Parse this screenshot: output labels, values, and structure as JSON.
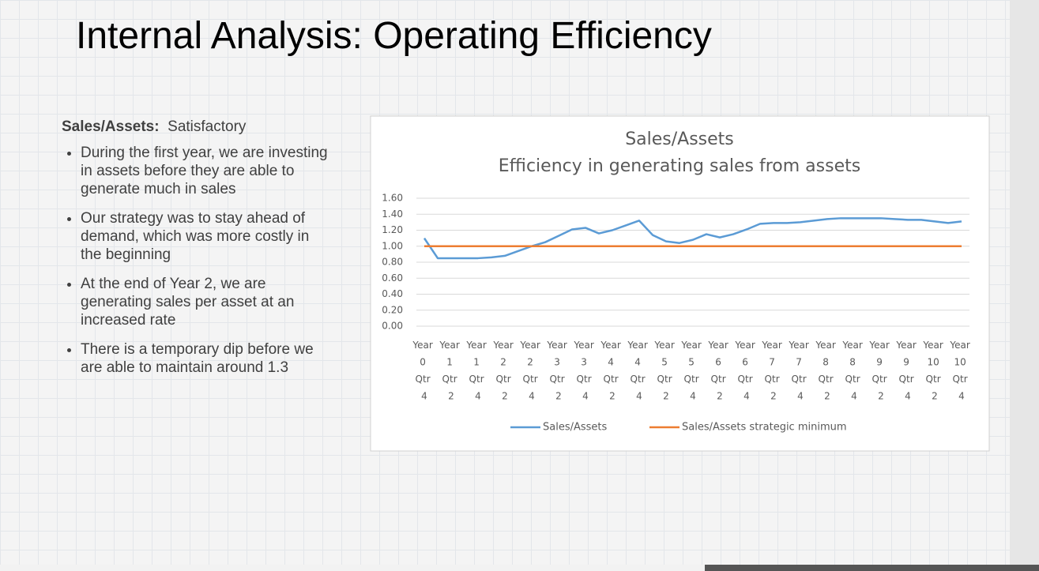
{
  "slide": {
    "title": "Internal Analysis: Operating Efficiency",
    "heading": "Sales/Assets:",
    "rating": "Satisfactory",
    "bullets": [
      "During the first year, we are investing in assets before they are able to generate much in sales",
      "Our strategy was to stay ahead of demand, which was more costly in the beginning",
      "At the end of Year 2, we are generating sales per asset at an increased rate",
      "There is a temporary dip before we are able to maintain around 1.3"
    ]
  },
  "chart_data": {
    "type": "line",
    "title": "Sales/Assets",
    "subtitle": "Efficiency in generating sales from assets",
    "categories": [
      "Year 0 Qtr 4",
      null,
      "Year 1 Qtr 2",
      null,
      "Year 1 Qtr 4",
      null,
      "Year 2 Qtr 2",
      null,
      "Year 2 Qtr 4",
      null,
      "Year 3 Qtr 2",
      null,
      "Year 3 Qtr 4",
      null,
      "Year 4 Qtr 2",
      null,
      "Year 4 Qtr 4",
      null,
      "Year 5 Qtr 2",
      null,
      "Year 5 Qtr 4",
      null,
      "Year 6 Qtr 2",
      null,
      "Year 6 Qtr 4",
      null,
      "Year 7 Qtr 2",
      null,
      "Year 7 Qtr 4",
      null,
      "Year 8 Qtr 2",
      null,
      "Year 8 Qtr 4",
      null,
      "Year 9 Qtr 2",
      null,
      "Year 9 Qtr 4",
      null,
      "Year 10 Qtr 2",
      null,
      "Year 10 Qtr 4"
    ],
    "series": [
      {
        "name": "Sales/Assets",
        "color": "#5b9bd5",
        "values": [
          1.1,
          0.85,
          0.85,
          0.85,
          0.85,
          0.86,
          0.88,
          0.94,
          1.0,
          1.05,
          1.13,
          1.21,
          1.23,
          1.16,
          1.2,
          1.26,
          1.32,
          1.14,
          1.06,
          1.04,
          1.08,
          1.15,
          1.11,
          1.15,
          1.21,
          1.28,
          1.29,
          1.29,
          1.3,
          1.32,
          1.34,
          1.35,
          1.35,
          1.35,
          1.35,
          1.34,
          1.33,
          1.33,
          1.31,
          1.29,
          1.31
        ]
      },
      {
        "name": "Sales/Assets strategic minimum",
        "color": "#ed7d31",
        "values": [
          1,
          1,
          1,
          1,
          1,
          1,
          1,
          1,
          1,
          1,
          1,
          1,
          1,
          1,
          1,
          1,
          1,
          1,
          1,
          1,
          1,
          1,
          1,
          1,
          1,
          1,
          1,
          1,
          1,
          1,
          1,
          1,
          1,
          1,
          1,
          1,
          1,
          1,
          1,
          1,
          1
        ]
      }
    ],
    "ylim": [
      0,
      1.6
    ],
    "yticks": [
      {
        "value": 0,
        "label": "0.00"
      },
      {
        "value": 0.2,
        "label": "0.20"
      },
      {
        "value": 0.4,
        "label": "0.40"
      },
      {
        "value": 0.6,
        "label": "0.60"
      },
      {
        "value": 0.8,
        "label": "0.80"
      },
      {
        "value": 1,
        "label": "1.00"
      },
      {
        "value": 1.2,
        "label": "1.20"
      },
      {
        "value": 1.4,
        "label": "1.40"
      },
      {
        "value": 1.6,
        "label": "1.60"
      }
    ],
    "grid": true
  }
}
